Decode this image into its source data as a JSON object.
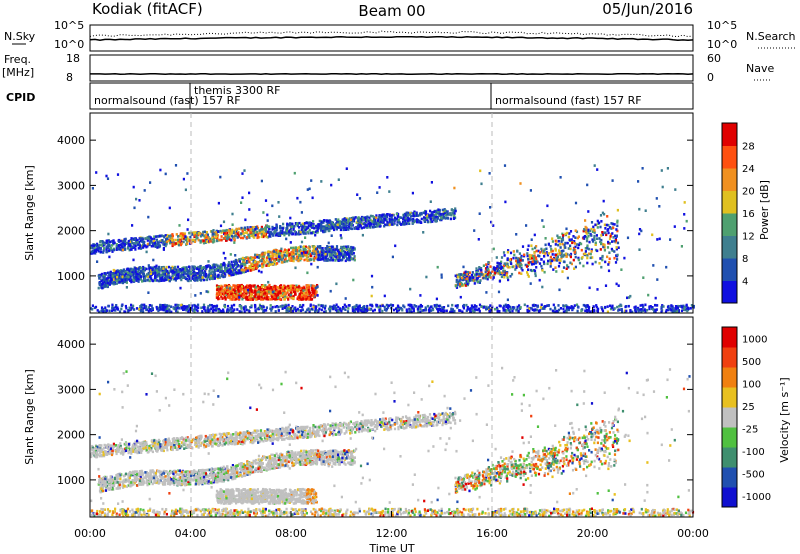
{
  "header": {
    "left": "Kodiak (fitACF)",
    "center": "Beam 00",
    "right": "05/Jun/2016"
  },
  "sky_panel": {
    "left_label": "N.Sky",
    "right_label": "N.Search",
    "left_ticks": [
      "10^5",
      "10^0"
    ],
    "right_ticks": [
      "10^5",
      "10^0"
    ]
  },
  "freq_panel": {
    "left_label_1": "Freq.",
    "left_label_2": "[MHz]",
    "right_label": "Nave",
    "left_ticks": [
      "18",
      "8"
    ],
    "right_ticks": [
      "60",
      "0"
    ]
  },
  "cpid_panel": {
    "label": "CPID",
    "segments": [
      {
        "text": "normalsound (fast) 157 RF",
        "start_hour": 0
      },
      {
        "text": "themis 3300 RF",
        "start_hour": 4
      },
      {
        "text": "normalsound (fast) 157 RF",
        "start_hour": 16
      }
    ]
  },
  "x_axis": {
    "label": "Time UT",
    "ticks": [
      "00:00",
      "04:00",
      "08:00",
      "12:00",
      "16:00",
      "20:00",
      "00:00"
    ],
    "range_hours": [
      0,
      24
    ]
  },
  "chart_data": [
    {
      "type": "heatmap",
      "title": "",
      "ylabel": "Slant Range [km]",
      "xlabel": "",
      "x_range_hours": [
        0,
        24
      ],
      "ylim": [
        180,
        4600
      ],
      "y_ticks": [
        "1000",
        "2000",
        "3000",
        "4000"
      ],
      "colorbar": {
        "label": "Power [dB]",
        "ticks": [
          "4",
          "8",
          "12",
          "16",
          "20",
          "24",
          "28"
        ],
        "colors": [
          "#1010e0",
          "#2050b0",
          "#3f7f8f",
          "#4fa070",
          "#e0c020",
          "#f09020",
          "#ff5010",
          "#e00000"
        ]
      },
      "features": [
        {
          "band": "upper",
          "from_hour": 0.0,
          "to_hour": 14.5,
          "start_range": 1650,
          "end_range": 2400
        },
        {
          "band": "middle",
          "from_hour": 0.3,
          "to_hour": 10.5,
          "start_range": 850,
          "end_range": 1600
        },
        {
          "band": "strong_echo",
          "from_hour": 5.0,
          "to_hour": 9.0,
          "range": 650
        },
        {
          "band": "evening",
          "from_hour": 14.5,
          "to_hour": 21.0,
          "start_range": 900,
          "end_range": 2200
        },
        {
          "band": "ground_scatter",
          "from_hour": 0.0,
          "to_hour": 24.0,
          "range": 250
        }
      ]
    },
    {
      "type": "heatmap",
      "title": "",
      "ylabel": "Slant Range [km]",
      "xlabel": "Time UT",
      "x_range_hours": [
        0,
        24
      ],
      "ylim": [
        180,
        4600
      ],
      "y_ticks": [
        "1000",
        "2000",
        "3000",
        "4000"
      ],
      "colorbar": {
        "label": "Velocity [m s⁻¹]",
        "ticks": [
          "1000",
          "500",
          "100",
          "25",
          "-25",
          "-100",
          "-500",
          "-1000"
        ],
        "colors": [
          "#1010d0",
          "#2050b0",
          "#3f8f6f",
          "#50c040",
          "#c0c0c0",
          "#e8c020",
          "#f08010",
          "#f04010",
          "#e00000"
        ]
      },
      "features": [
        {
          "band": "upper",
          "from_hour": 0.0,
          "to_hour": 14.5,
          "start_range": 1650,
          "end_range": 2400
        },
        {
          "band": "middle",
          "from_hour": 0.3,
          "to_hour": 10.5,
          "start_range": 850,
          "end_range": 1600
        },
        {
          "band": "evening",
          "from_hour": 14.5,
          "to_hour": 21.0,
          "start_range": 900,
          "end_range": 2200
        }
      ]
    }
  ]
}
